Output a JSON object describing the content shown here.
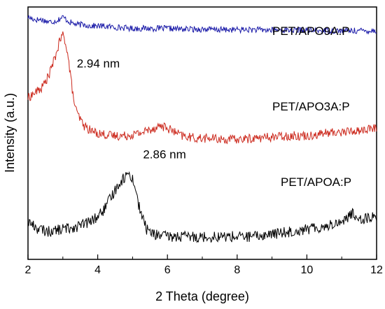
{
  "chart_data": {
    "type": "line",
    "title": "",
    "xlabel": "2 Theta (degree)",
    "ylabel": "Intensity (a.u.)",
    "xlim": [
      2,
      12
    ],
    "x_ticks": [
      2,
      4,
      6,
      8,
      10,
      12
    ],
    "x_tick_labels": [
      "2",
      "4",
      "6",
      "8",
      "10",
      "12"
    ],
    "y_ticks_shown": false,
    "grid": false,
    "legend": "inline labels at right",
    "series": [
      {
        "name": "PET/APO9A:P",
        "color": "#1a1aa8",
        "x": [
          2.0,
          2.2,
          2.4,
          2.6,
          2.8,
          3.0,
          3.2,
          3.4,
          3.6,
          3.8,
          4.0,
          4.5,
          5.0,
          5.5,
          6.0,
          6.5,
          7.0,
          7.5,
          8.0,
          8.5,
          9.0,
          9.5,
          10.0,
          10.5,
          11.0,
          11.5,
          12.0
        ],
        "y": [
          0.96,
          0.95,
          0.95,
          0.94,
          0.945,
          0.96,
          0.94,
          0.93,
          0.93,
          0.925,
          0.925,
          0.92,
          0.915,
          0.915,
          0.915,
          0.912,
          0.912,
          0.91,
          0.91,
          0.91,
          0.908,
          0.908,
          0.908,
          0.906,
          0.906,
          0.906,
          0.906
        ]
      },
      {
        "name": "PET/APO3A:P",
        "color": "#cc2a1e",
        "x": [
          2.0,
          2.2,
          2.4,
          2.6,
          2.7,
          2.8,
          2.9,
          3.0,
          3.1,
          3.2,
          3.3,
          3.4,
          3.6,
          3.8,
          4.0,
          4.4,
          4.8,
          5.2,
          5.6,
          5.8,
          6.0,
          6.4,
          6.8,
          7.2,
          7.6,
          8.0,
          8.5,
          9.0,
          9.5,
          10.0,
          10.5,
          11.0,
          11.5,
          12.0
        ],
        "y": [
          0.64,
          0.66,
          0.68,
          0.73,
          0.77,
          0.81,
          0.86,
          0.89,
          0.85,
          0.75,
          0.64,
          0.58,
          0.53,
          0.51,
          0.5,
          0.49,
          0.49,
          0.5,
          0.52,
          0.53,
          0.52,
          0.49,
          0.48,
          0.48,
          0.475,
          0.475,
          0.48,
          0.485,
          0.49,
          0.49,
          0.5,
          0.505,
          0.51,
          0.52
        ]
      },
      {
        "name": "PET/APOA:P",
        "color": "#000000",
        "x": [
          2.0,
          2.3,
          2.6,
          3.0,
          3.4,
          3.8,
          4.0,
          4.2,
          4.4,
          4.6,
          4.8,
          4.9,
          5.0,
          5.1,
          5.2,
          5.4,
          5.6,
          6.0,
          6.5,
          7.0,
          7.5,
          8.0,
          8.5,
          9.0,
          9.5,
          10.0,
          10.5,
          11.0,
          11.3,
          11.6,
          12.0
        ],
        "y": [
          0.15,
          0.12,
          0.11,
          0.12,
          0.13,
          0.15,
          0.17,
          0.2,
          0.25,
          0.3,
          0.33,
          0.34,
          0.32,
          0.27,
          0.2,
          0.12,
          0.1,
          0.09,
          0.09,
          0.09,
          0.09,
          0.09,
          0.09,
          0.1,
          0.11,
          0.12,
          0.13,
          0.15,
          0.18,
          0.16,
          0.17
        ]
      }
    ],
    "annotations": [
      {
        "text": "2.94 nm",
        "x": 3.4,
        "y": 0.76
      },
      {
        "text": "2.86 nm",
        "x": 5.3,
        "y": 0.4
      }
    ]
  }
}
